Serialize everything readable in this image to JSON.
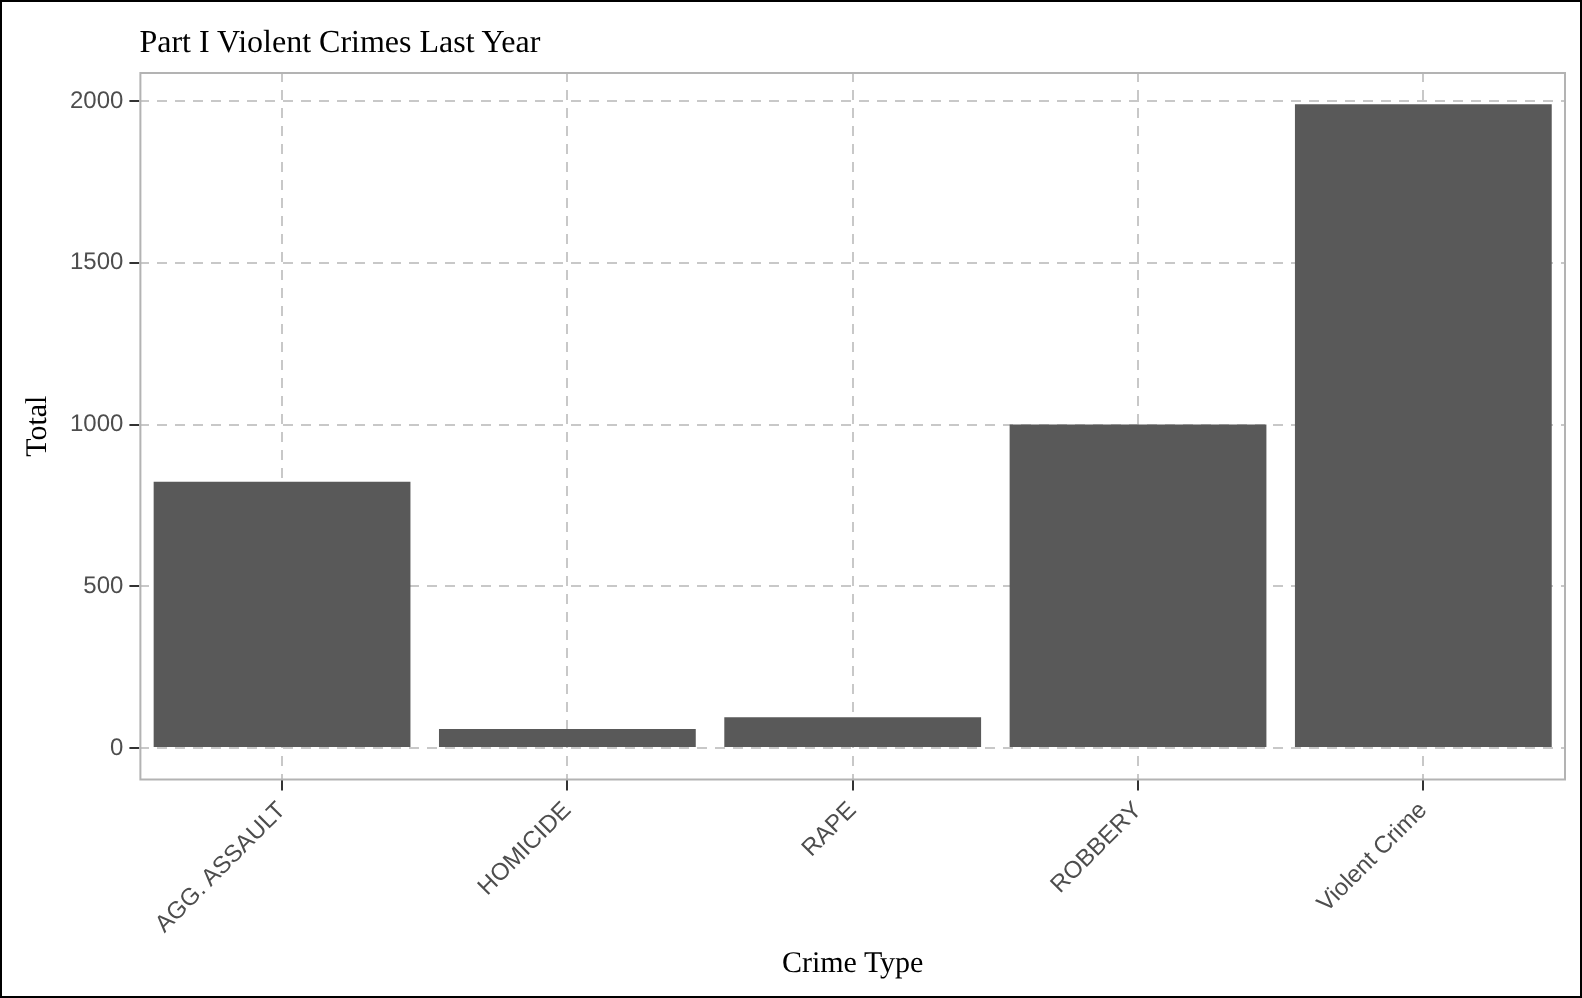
{
  "chart_data": {
    "type": "bar",
    "title": "Part I Violent Crimes Last Year",
    "xlabel": "Crime Type",
    "ylabel": "Total",
    "categories": [
      "AGG. ASSAULT",
      "HOMICIDE",
      "RAPE",
      "ROBBERY",
      "Violent Crime"
    ],
    "values": [
      823,
      59,
      95,
      1000,
      1990
    ],
    "color": "#595959",
    "ylim": [
      -100,
      2090
    ],
    "yticks": [
      0,
      500,
      1000,
      1500,
      2000
    ],
    "grid": true
  }
}
